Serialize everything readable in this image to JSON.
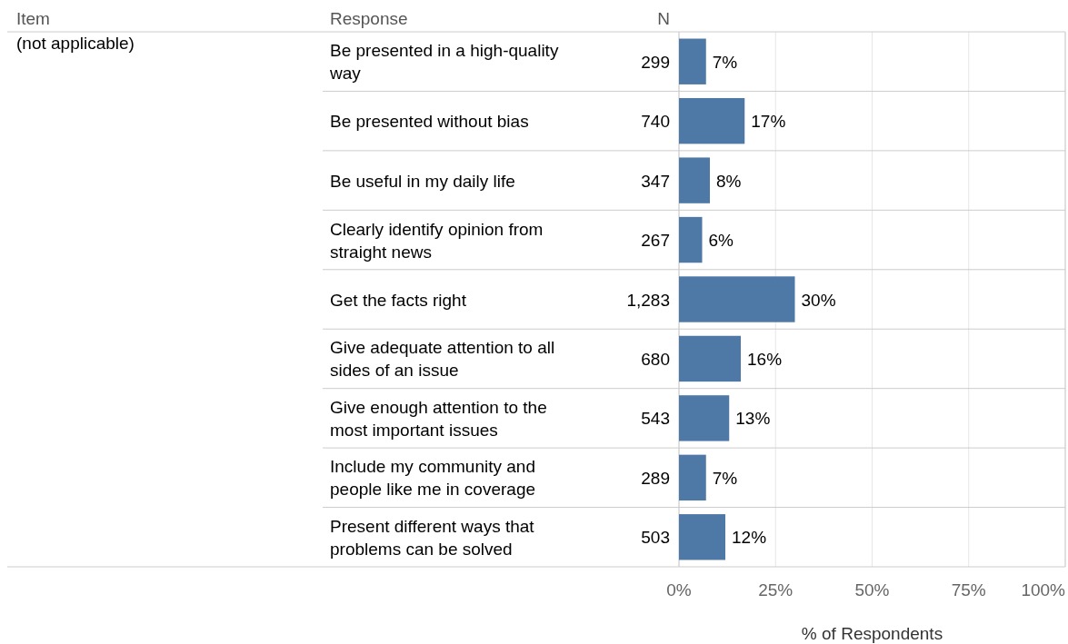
{
  "chart_data": {
    "type": "bar",
    "orientation": "horizontal",
    "ylabel": "Response",
    "xlabel": "% of Respondents",
    "categories": [
      "Be presented in a high-quality way",
      "Be presented without bias",
      "Be useful in my daily life",
      "Clearly identify opinion from straight news",
      "Get the facts right",
      "Give adequate attention to all sides of an issue",
      "Give enough attention to the most important issues",
      "Include my community and people like me in coverage",
      "Present different ways that problems can be solved"
    ],
    "values": [
      7,
      17,
      8,
      6,
      30,
      16,
      13,
      7,
      12
    ],
    "value_labels": [
      "7%",
      "17%",
      "8%",
      "6%",
      "30%",
      "16%",
      "13%",
      "7%",
      "12%"
    ],
    "color": "#4e79a7",
    "xlim": [
      0,
      100
    ],
    "xticks": [
      {
        "value": 0,
        "label": "0%"
      },
      {
        "value": 25,
        "label": "25%"
      },
      {
        "value": 50,
        "label": "50%"
      },
      {
        "value": 75,
        "label": "75%"
      },
      {
        "value": 100,
        "label": "100%"
      }
    ],
    "grid": "x",
    "annotations": [
      "Item",
      "(not applicable)",
      "N",
      "299",
      "740",
      "347",
      "267",
      "1,283",
      "680",
      "543",
      "289",
      "503"
    ]
  }
}
